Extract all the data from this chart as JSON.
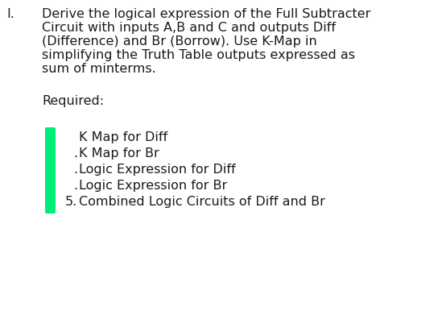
{
  "background_color": "#ffffff",
  "main_number": "I.",
  "paragraph": [
    "Derive the logical expression of the Full Subtracter",
    "Circuit with inputs A,B and C and outputs Diff",
    "(Difference) and Br (Borrow). Use K-Map in",
    "simplifying the Truth Table outputs expressed as",
    "sum of minterms."
  ],
  "required_label": "Required:",
  "list_items": [
    "K Map for Diff",
    "K Map for Br",
    "Logic Expression for Diff",
    "Logic Expression for Br",
    "Combined Logic Circuits of Diff and Br"
  ],
  "list_prefixes": [
    "",
    ".",
    ".",
    ".",
    "5."
  ],
  "bullet_color": "#00ee77",
  "font_size": 11.5,
  "text_color": "#1a1a1a"
}
